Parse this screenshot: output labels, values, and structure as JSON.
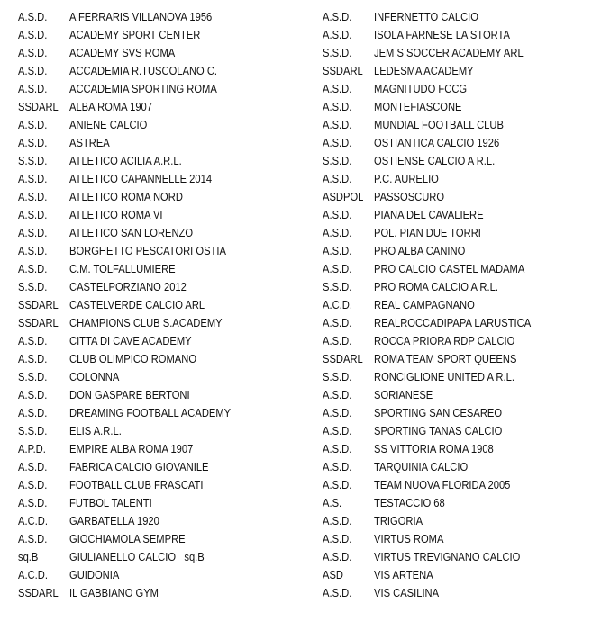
{
  "left_column": [
    {
      "prefix": "A.S.D.",
      "name": "A FERRARIS VILLANOVA 1956"
    },
    {
      "prefix": "A.S.D.",
      "name": "ACADEMY SPORT CENTER"
    },
    {
      "prefix": "A.S.D.",
      "name": "ACADEMY SVS ROMA"
    },
    {
      "prefix": "A.S.D.",
      "name": "ACCADEMIA R.TUSCOLANO C."
    },
    {
      "prefix": "A.S.D.",
      "name": "ACCADEMIA SPORTING ROMA"
    },
    {
      "prefix": "SSDARL",
      "name": "ALBA ROMA 1907"
    },
    {
      "prefix": "A.S.D.",
      "name": "ANIENE CALCIO"
    },
    {
      "prefix": "A.S.D.",
      "name": "ASTREA"
    },
    {
      "prefix": "S.S.D.",
      "name": "ATLETICO ACILIA A.R.L."
    },
    {
      "prefix": "A.S.D.",
      "name": "ATLETICO CAPANNELLE 2014"
    },
    {
      "prefix": "A.S.D.",
      "name": "ATLETICO ROMA NORD"
    },
    {
      "prefix": "A.S.D.",
      "name": "ATLETICO ROMA VI"
    },
    {
      "prefix": "A.S.D.",
      "name": "ATLETICO SAN LORENZO"
    },
    {
      "prefix": "A.S.D.",
      "name": "BORGHETTO PESCATORI OSTIA"
    },
    {
      "prefix": "A.S.D.",
      "name": "C.M. TOLFALLUMIERE"
    },
    {
      "prefix": "S.S.D.",
      "name": "CASTELPORZIANO 2012"
    },
    {
      "prefix": "SSDARL",
      "name": "CASTELVERDE CALCIO ARL"
    },
    {
      "prefix": "SSDARL",
      "name": "CHAMPIONS CLUB S.ACADEMY"
    },
    {
      "prefix": "A.S.D.",
      "name": "CITTA DI CAVE ACADEMY"
    },
    {
      "prefix": "A.S.D.",
      "name": "CLUB OLIMPICO ROMANO"
    },
    {
      "prefix": "S.S.D.",
      "name": "COLONNA"
    },
    {
      "prefix": "A.S.D.",
      "name": "DON GASPARE BERTONI"
    },
    {
      "prefix": "A.S.D.",
      "name": "DREAMING FOOTBALL ACADEMY"
    },
    {
      "prefix": "S.S.D.",
      "name": "ELIS A.R.L."
    },
    {
      "prefix": "A.P.D.",
      "name": "EMPIRE ALBA ROMA 1907"
    },
    {
      "prefix": "A.S.D.",
      "name": "FABRICA CALCIO GIOVANILE"
    },
    {
      "prefix": "A.S.D.",
      "name": "FOOTBALL CLUB FRASCATI"
    },
    {
      "prefix": "A.S.D.",
      "name": "FUTBOL TALENTI"
    },
    {
      "prefix": "A.C.D.",
      "name": "GARBATELLA 1920"
    },
    {
      "prefix": "A.S.D.",
      "name": "GIOCHIAMOLA SEMPRE"
    },
    {
      "prefix": "sq.B",
      "name": "GIULIANELLO CALCIO   sq.B"
    },
    {
      "prefix": "A.C.D.",
      "name": "GUIDONIA"
    },
    {
      "prefix": "SSDARL",
      "name": "IL GABBIANO GYM"
    }
  ],
  "right_column": [
    {
      "prefix": "A.S.D.",
      "name": "INFERNETTO CALCIO"
    },
    {
      "prefix": "A.S.D.",
      "name": "ISOLA FARNESE LA STORTA"
    },
    {
      "prefix": "S.S.D.",
      "name": "JEM S SOCCER ACADEMY ARL"
    },
    {
      "prefix": "SSDARL",
      "name": "LEDESMA ACADEMY"
    },
    {
      "prefix": "A.S.D.",
      "name": "MAGNITUDO FCCG"
    },
    {
      "prefix": "A.S.D.",
      "name": "MONTEFIASCONE"
    },
    {
      "prefix": "A.S.D.",
      "name": "MUNDIAL FOOTBALL CLUB"
    },
    {
      "prefix": "A.S.D.",
      "name": "OSTIANTICA CALCIO 1926"
    },
    {
      "prefix": "S.S.D.",
      "name": "OSTIENSE CALCIO A R.L."
    },
    {
      "prefix": "A.S.D.",
      "name": "P.C. AURELIO"
    },
    {
      "prefix": "ASDPOL",
      "name": "PASSOSCURO"
    },
    {
      "prefix": "A.S.D.",
      "name": "PIANA DEL CAVALIERE"
    },
    {
      "prefix": "A.S.D.",
      "name": "POL. PIAN DUE TORRI"
    },
    {
      "prefix": "A.S.D.",
      "name": "PRO ALBA CANINO"
    },
    {
      "prefix": "A.S.D.",
      "name": "PRO CALCIO CASTEL MADAMA"
    },
    {
      "prefix": "S.S.D.",
      "name": "PRO ROMA CALCIO A R.L."
    },
    {
      "prefix": "A.C.D.",
      "name": "REAL CAMPAGNANO"
    },
    {
      "prefix": "A.S.D.",
      "name": "REALROCCADIPAPA LARUSTICA"
    },
    {
      "prefix": "A.S.D.",
      "name": "ROCCA PRIORA RDP CALCIO"
    },
    {
      "prefix": "SSDARL",
      "name": "ROMA TEAM SPORT QUEENS"
    },
    {
      "prefix": "S.S.D.",
      "name": "RONCIGLIONE UNITED A R.L."
    },
    {
      "prefix": "A.S.D.",
      "name": "SORIANESE"
    },
    {
      "prefix": "A.S.D.",
      "name": "SPORTING SAN CESAREO"
    },
    {
      "prefix": "A.S.D.",
      "name": "SPORTING TANAS CALCIO"
    },
    {
      "prefix": "A.S.D.",
      "name": "SS VITTORIA ROMA 1908"
    },
    {
      "prefix": "A.S.D.",
      "name": "TARQUINIA CALCIO"
    },
    {
      "prefix": "A.S.D.",
      "name": "TEAM NUOVA FLORIDA 2005"
    },
    {
      "prefix": "A.S.",
      "name": "TESTACCIO 68"
    },
    {
      "prefix": "A.S.D.",
      "name": "TRIGORIA"
    },
    {
      "prefix": "A.S.D.",
      "name": "VIRTUS ROMA"
    },
    {
      "prefix": "A.S.D.",
      "name": "VIRTUS TREVIGNANO CALCIO"
    },
    {
      "prefix": "ASD",
      "name": "VIS ARTENA"
    },
    {
      "prefix": "A.S.D.",
      "name": "VIS CASILINA"
    }
  ]
}
